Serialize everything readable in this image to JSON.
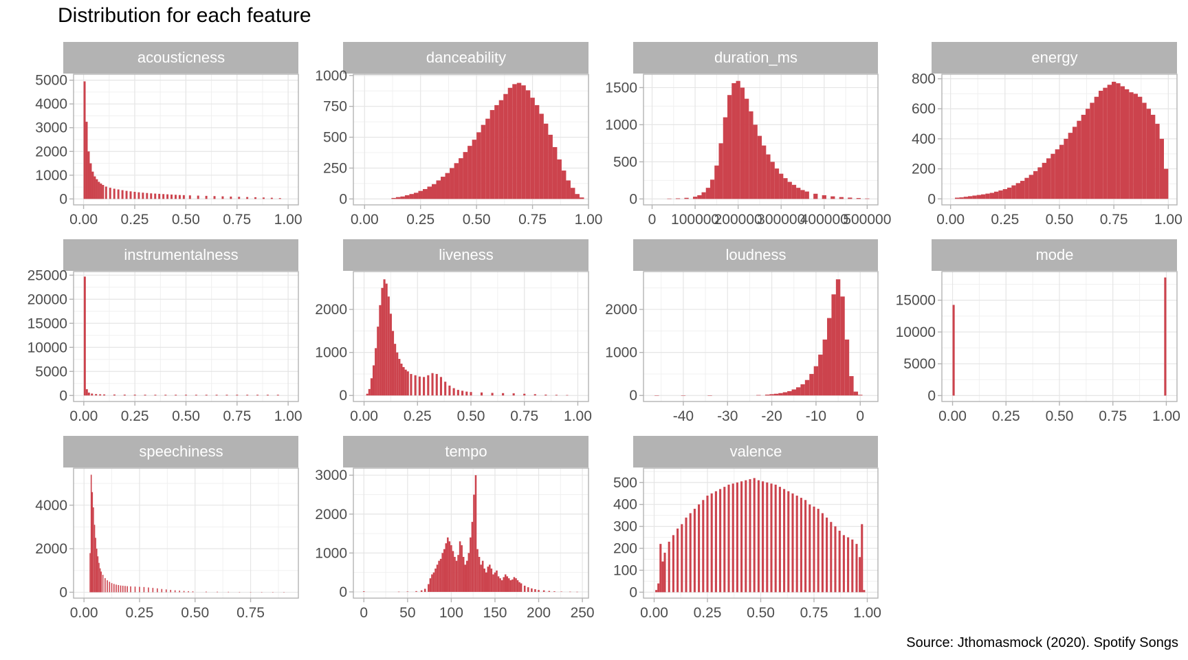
{
  "title": "Distribution for each feature",
  "caption": "Source: Jthomasmock (2020). Spotify Songs",
  "colors": {
    "bar": "#CC434D",
    "strip": "#B3B3B3",
    "strip_text": "#FFFFFF",
    "grid": "#E5E5E5",
    "axis": "#B3B3B3",
    "text": "#4D4D4D"
  },
  "chart_data": [
    {
      "type": "bar",
      "facet": "acousticness",
      "xlim": [
        -0.049,
        1.05
      ],
      "ylim": [
        -250,
        5250
      ],
      "xticks": [
        0,
        0.25,
        0.5,
        0.75,
        1
      ],
      "xtick_labels": [
        "0.00",
        "0.25",
        "0.50",
        "0.75",
        "1.00"
      ],
      "yticks": [
        0,
        1000,
        2000,
        3000,
        4000,
        5000
      ],
      "ytick_labels": [
        "0",
        "1000",
        "2000",
        "3000",
        "4000",
        "5000"
      ],
      "x": [
        0.005,
        0.015,
        0.025,
        0.035,
        0.045,
        0.055,
        0.065,
        0.075,
        0.085,
        0.095,
        0.11,
        0.13,
        0.15,
        0.17,
        0.19,
        0.21,
        0.23,
        0.25,
        0.27,
        0.29,
        0.31,
        0.33,
        0.35,
        0.37,
        0.39,
        0.41,
        0.43,
        0.45,
        0.47,
        0.49,
        0.52,
        0.56,
        0.6,
        0.64,
        0.68,
        0.72,
        0.76,
        0.8,
        0.84,
        0.88,
        0.92,
        0.96
      ],
      "values": [
        4950,
        3250,
        2000,
        1500,
        1150,
        950,
        830,
        720,
        650,
        590,
        520,
        470,
        430,
        400,
        370,
        340,
        320,
        300,
        280,
        265,
        250,
        235,
        225,
        215,
        205,
        195,
        185,
        175,
        165,
        160,
        150,
        140,
        130,
        120,
        110,
        100,
        90,
        80,
        70,
        60,
        50,
        35
      ],
      "width": 0.01
    },
    {
      "type": "bar",
      "facet": "danceability",
      "xlim": [
        -0.05,
        1.0
      ],
      "ylim": [
        -48,
        1010
      ],
      "xticks": [
        0,
        0.25,
        0.5,
        0.75,
        1
      ],
      "xtick_labels": [
        "0.00",
        "0.25",
        "0.50",
        "0.75",
        "1.00"
      ],
      "yticks": [
        0,
        250,
        500,
        750,
        1000
      ],
      "ytick_labels": [
        "0",
        "250",
        "500",
        "750",
        "1000"
      ],
      "x": [
        0.13,
        0.15,
        0.17,
        0.19,
        0.21,
        0.23,
        0.25,
        0.27,
        0.29,
        0.31,
        0.33,
        0.35,
        0.37,
        0.39,
        0.41,
        0.43,
        0.45,
        0.47,
        0.49,
        0.51,
        0.53,
        0.55,
        0.57,
        0.59,
        0.61,
        0.63,
        0.65,
        0.67,
        0.69,
        0.71,
        0.73,
        0.75,
        0.77,
        0.79,
        0.81,
        0.83,
        0.85,
        0.87,
        0.89,
        0.91,
        0.93,
        0.95,
        0.97
      ],
      "values": [
        8,
        15,
        20,
        30,
        40,
        50,
        65,
        80,
        100,
        120,
        150,
        180,
        210,
        250,
        290,
        330,
        380,
        430,
        480,
        540,
        600,
        650,
        720,
        760,
        800,
        850,
        900,
        930,
        940,
        920,
        880,
        820,
        760,
        690,
        610,
        520,
        420,
        320,
        230,
        150,
        90,
        40,
        12
      ],
      "width": 0.02
    },
    {
      "type": "bar",
      "facet": "duration_ms",
      "xlim": [
        -20000,
        525000
      ],
      "ylim": [
        -80,
        1680
      ],
      "xticks": [
        0,
        100000,
        200000,
        300000,
        400000,
        500000
      ],
      "xtick_labels": [
        "0",
        "100000",
        "200000",
        "300000",
        "400000",
        "500000"
      ],
      "yticks": [
        0,
        500,
        1000,
        1500
      ],
      "ytick_labels": [
        "0",
        "500",
        "1000",
        "1500"
      ],
      "x": [
        40000,
        60000,
        80000,
        100000,
        110000,
        120000,
        130000,
        140000,
        150000,
        160000,
        170000,
        180000,
        190000,
        200000,
        210000,
        220000,
        230000,
        240000,
        250000,
        260000,
        270000,
        280000,
        290000,
        300000,
        310000,
        320000,
        330000,
        340000,
        350000,
        360000,
        380000,
        400000,
        420000,
        440000,
        460000,
        480000,
        500000
      ],
      "values": [
        5,
        8,
        15,
        30,
        50,
        90,
        150,
        260,
        450,
        750,
        1100,
        1400,
        1560,
        1590,
        1500,
        1350,
        1180,
        1000,
        850,
        720,
        600,
        500,
        410,
        340,
        280,
        230,
        190,
        150,
        120,
        100,
        70,
        50,
        35,
        25,
        18,
        12,
        6
      ],
      "width": 10000
    },
    {
      "type": "bar",
      "facet": "energy",
      "xlim": [
        -0.04,
        1.04
      ],
      "ylim": [
        -40,
        830
      ],
      "xticks": [
        0,
        0.25,
        0.5,
        0.75,
        1
      ],
      "xtick_labels": [
        "0.00",
        "0.25",
        "0.50",
        "0.75",
        "1.00"
      ],
      "yticks": [
        0,
        200,
        400,
        600,
        800
      ],
      "ytick_labels": [
        "0",
        "200",
        "400",
        "600",
        "800"
      ],
      "x": [
        0.03,
        0.05,
        0.07,
        0.09,
        0.11,
        0.13,
        0.15,
        0.17,
        0.19,
        0.21,
        0.23,
        0.25,
        0.27,
        0.29,
        0.31,
        0.33,
        0.35,
        0.37,
        0.39,
        0.41,
        0.43,
        0.45,
        0.47,
        0.49,
        0.51,
        0.53,
        0.55,
        0.57,
        0.59,
        0.61,
        0.63,
        0.65,
        0.67,
        0.69,
        0.71,
        0.73,
        0.75,
        0.77,
        0.79,
        0.81,
        0.83,
        0.85,
        0.87,
        0.89,
        0.91,
        0.93,
        0.95,
        0.97,
        0.99
      ],
      "values": [
        8,
        10,
        14,
        18,
        22,
        26,
        30,
        35,
        40,
        48,
        56,
        65,
        75,
        90,
        105,
        120,
        140,
        160,
        185,
        210,
        240,
        270,
        300,
        330,
        360,
        400,
        440,
        480,
        520,
        560,
        600,
        640,
        680,
        720,
        740,
        760,
        780,
        770,
        750,
        730,
        710,
        700,
        680,
        640,
        600,
        560,
        500,
        400,
        200
      ],
      "width": 0.02
    },
    {
      "type": "bar",
      "facet": "instrumentalness",
      "xlim": [
        -0.05,
        1.05
      ],
      "ylim": [
        -1250,
        25750
      ],
      "xticks": [
        0,
        0.25,
        0.5,
        0.75,
        1
      ],
      "xtick_labels": [
        "0.00",
        "0.25",
        "0.50",
        "0.75",
        "1.00"
      ],
      "yticks": [
        0,
        5000,
        10000,
        15000,
        20000,
        25000
      ],
      "ytick_labels": [
        "0",
        "5000",
        "10000",
        "15000",
        "20000",
        "25000"
      ],
      "x": [
        0.005,
        0.015,
        0.025,
        0.04,
        0.06,
        0.08,
        0.1,
        0.15,
        0.2,
        0.25,
        0.3,
        0.35,
        0.4,
        0.45,
        0.5,
        0.55,
        0.6,
        0.65,
        0.7,
        0.75,
        0.8,
        0.85,
        0.9,
        0.95
      ],
      "values": [
        24700,
        1300,
        600,
        400,
        300,
        250,
        220,
        200,
        180,
        170,
        160,
        150,
        150,
        150,
        150,
        150,
        150,
        150,
        150,
        150,
        150,
        150,
        150,
        150
      ],
      "width": 0.01
    },
    {
      "type": "bar",
      "facet": "liveness",
      "xlim": [
        -0.05,
        1.05
      ],
      "ylim": [
        -140,
        2880
      ],
      "xticks": [
        0,
        0.25,
        0.5,
        0.75,
        1
      ],
      "xtick_labels": [
        "0.00",
        "0.25",
        "0.50",
        "0.75",
        "1.00"
      ],
      "yticks": [
        0,
        1000,
        2000
      ],
      "ytick_labels": [
        "0",
        "1000",
        "2000"
      ],
      "x": [
        0.015,
        0.025,
        0.035,
        0.045,
        0.055,
        0.065,
        0.075,
        0.085,
        0.095,
        0.105,
        0.115,
        0.125,
        0.135,
        0.145,
        0.155,
        0.165,
        0.175,
        0.185,
        0.195,
        0.205,
        0.22,
        0.24,
        0.26,
        0.28,
        0.3,
        0.32,
        0.34,
        0.36,
        0.38,
        0.4,
        0.42,
        0.44,
        0.46,
        0.48,
        0.5,
        0.55,
        0.6,
        0.65,
        0.7,
        0.75,
        0.8,
        0.85,
        0.9,
        0.95
      ],
      "values": [
        40,
        150,
        400,
        700,
        1100,
        1600,
        2100,
        2500,
        2700,
        2600,
        2300,
        1900,
        1500,
        1200,
        1000,
        850,
        740,
        660,
        600,
        560,
        500,
        470,
        440,
        430,
        470,
        520,
        500,
        430,
        320,
        230,
        170,
        130,
        110,
        90,
        80,
        70,
        60,
        55,
        50,
        40,
        30,
        20,
        15,
        10
      ],
      "width": 0.01
    },
    {
      "type": "bar",
      "facet": "loudness",
      "xlim": [
        -49,
        4
      ],
      "ylim": [
        -140,
        2880
      ],
      "xticks": [
        -40,
        -30,
        -20,
        -10,
        0
      ],
      "xtick_labels": [
        "-40",
        "-30",
        "-20",
        "-10",
        "0"
      ],
      "yticks": [
        0,
        1000,
        2000
      ],
      "ytick_labels": [
        "0",
        "1000",
        "2000"
      ],
      "x": [
        -46,
        -40,
        -34,
        -23,
        -21,
        -20,
        -19,
        -18,
        -17,
        -16,
        -15,
        -14,
        -13,
        -12,
        -11,
        -10,
        -9,
        -8,
        -7,
        -6,
        -5,
        -4,
        -3,
        -2,
        -1,
        0
      ],
      "values": [
        3,
        2,
        2,
        10,
        20,
        30,
        40,
        55,
        75,
        100,
        140,
        190,
        260,
        360,
        500,
        680,
        950,
        1300,
        1800,
        2350,
        2700,
        2300,
        1300,
        450,
        90,
        15
      ],
      "width": 1
    },
    {
      "type": "bar",
      "facet": "mode",
      "xlim": [
        -0.05,
        1.05
      ],
      "ylim": [
        -930,
        19500
      ],
      "xticks": [
        0,
        0.25,
        0.5,
        0.75,
        1
      ],
      "xtick_labels": [
        "0.00",
        "0.25",
        "0.50",
        "0.75",
        "1.00"
      ],
      "yticks": [
        0,
        5000,
        10000,
        15000
      ],
      "ytick_labels": [
        "0",
        "5000",
        "10000",
        "15000"
      ],
      "x": [
        0.005,
        0.995
      ],
      "values": [
        14260,
        18570
      ],
      "width": 0.01
    },
    {
      "type": "bar",
      "facet": "speechiness",
      "xlim": [
        -0.047,
        0.965
      ],
      "ylim": [
        -270,
        5700
      ],
      "xticks": [
        0,
        0.25,
        0.5,
        0.75
      ],
      "xtick_labels": [
        "0.00",
        "0.25",
        "0.50",
        "0.75"
      ],
      "yticks": [
        0,
        2000,
        4000
      ],
      "ytick_labels": [
        "0",
        "2000",
        "4000"
      ],
      "x": [
        0.0275,
        0.0325,
        0.0375,
        0.0425,
        0.0475,
        0.0525,
        0.0575,
        0.0625,
        0.0675,
        0.0725,
        0.0775,
        0.085,
        0.095,
        0.105,
        0.115,
        0.125,
        0.135,
        0.145,
        0.155,
        0.165,
        0.175,
        0.185,
        0.195,
        0.21,
        0.23,
        0.25,
        0.27,
        0.29,
        0.31,
        0.33,
        0.35,
        0.37,
        0.39,
        0.41,
        0.43,
        0.45,
        0.47,
        0.49,
        0.55,
        0.6,
        0.65,
        0.7,
        0.75,
        0.8,
        0.85,
        0.9
      ],
      "values": [
        1800,
        5400,
        4600,
        3900,
        3100,
        2500,
        2000,
        1650,
        1350,
        1100,
        950,
        800,
        650,
        550,
        480,
        420,
        380,
        350,
        330,
        310,
        300,
        290,
        280,
        270,
        260,
        250,
        240,
        220,
        200,
        180,
        150,
        130,
        110,
        90,
        75,
        60,
        50,
        40,
        30,
        25,
        20,
        15,
        10,
        8,
        5,
        3
      ],
      "width": 0.005
    },
    {
      "type": "bar",
      "facet": "tempo",
      "xlim": [
        -12,
        257
      ],
      "ylim": [
        -160,
        3180
      ],
      "xticks": [
        0,
        50,
        100,
        150,
        200,
        250
      ],
      "xtick_labels": [
        "0",
        "50",
        "100",
        "150",
        "200",
        "250"
      ],
      "yticks": [
        0,
        1000,
        2000,
        3000
      ],
      "ytick_labels": [
        "0",
        "1000",
        "2000",
        "3000"
      ],
      "x": [
        0,
        40,
        50,
        60,
        66,
        70,
        74,
        76,
        78,
        80,
        82,
        84,
        86,
        88,
        90,
        92,
        94,
        96,
        98,
        100,
        102,
        104,
        106,
        108,
        110,
        112,
        114,
        116,
        118,
        120,
        122,
        124,
        126,
        128,
        130,
        132,
        134,
        136,
        138,
        140,
        142,
        144,
        146,
        148,
        150,
        152,
        154,
        156,
        158,
        160,
        162,
        164,
        166,
        168,
        170,
        172,
        174,
        176,
        178,
        180,
        184,
        188,
        192,
        196,
        200,
        206,
        212,
        218,
        226,
        236,
        244
      ],
      "values": [
        15,
        5,
        10,
        20,
        40,
        80,
        200,
        350,
        450,
        500,
        600,
        700,
        800,
        850,
        1000,
        1100,
        1250,
        1400,
        1300,
        1200,
        1050,
        900,
        800,
        950,
        1300,
        1200,
        900,
        700,
        800,
        1000,
        1400,
        1800,
        2500,
        3000,
        1100,
        900,
        700,
        800,
        600,
        500,
        650,
        700,
        600,
        450,
        500,
        550,
        400,
        350,
        300,
        380,
        450,
        400,
        350,
        300,
        320,
        380,
        350,
        300,
        250,
        220,
        160,
        120,
        90,
        70,
        50,
        40,
        25,
        15,
        8,
        5,
        3
      ],
      "width": 2
    },
    {
      "type": "bar",
      "facet": "valence",
      "xlim": [
        -0.05,
        1.05
      ],
      "ylim": [
        -27,
        565
      ],
      "xticks": [
        0,
        0.25,
        0.5,
        0.75,
        1
      ],
      "xtick_labels": [
        "0.00",
        "0.25",
        "0.50",
        "0.75",
        "1.00"
      ],
      "yticks": [
        0,
        100,
        200,
        300,
        400,
        500
      ],
      "ytick_labels": [
        "0",
        "100",
        "200",
        "300",
        "400",
        "500"
      ],
      "x": [
        0.01,
        0.02,
        0.03,
        0.04,
        0.05,
        0.07,
        0.09,
        0.11,
        0.13,
        0.15,
        0.17,
        0.19,
        0.21,
        0.23,
        0.25,
        0.27,
        0.29,
        0.31,
        0.33,
        0.35,
        0.37,
        0.39,
        0.41,
        0.43,
        0.45,
        0.47,
        0.49,
        0.51,
        0.53,
        0.55,
        0.57,
        0.59,
        0.61,
        0.63,
        0.65,
        0.67,
        0.69,
        0.71,
        0.73,
        0.75,
        0.77,
        0.79,
        0.81,
        0.83,
        0.85,
        0.87,
        0.89,
        0.91,
        0.93,
        0.95,
        0.965,
        0.975,
        0.985
      ],
      "values": [
        10,
        40,
        220,
        140,
        180,
        230,
        260,
        290,
        310,
        340,
        360,
        380,
        400,
        420,
        440,
        450,
        460,
        470,
        480,
        490,
        495,
        500,
        505,
        510,
        515,
        520,
        510,
        505,
        500,
        495,
        490,
        480,
        470,
        460,
        450,
        440,
        430,
        420,
        400,
        390,
        380,
        360,
        340,
        320,
        300,
        280,
        260,
        250,
        240,
        220,
        160,
        310,
        10
      ],
      "width": 0.01
    }
  ]
}
